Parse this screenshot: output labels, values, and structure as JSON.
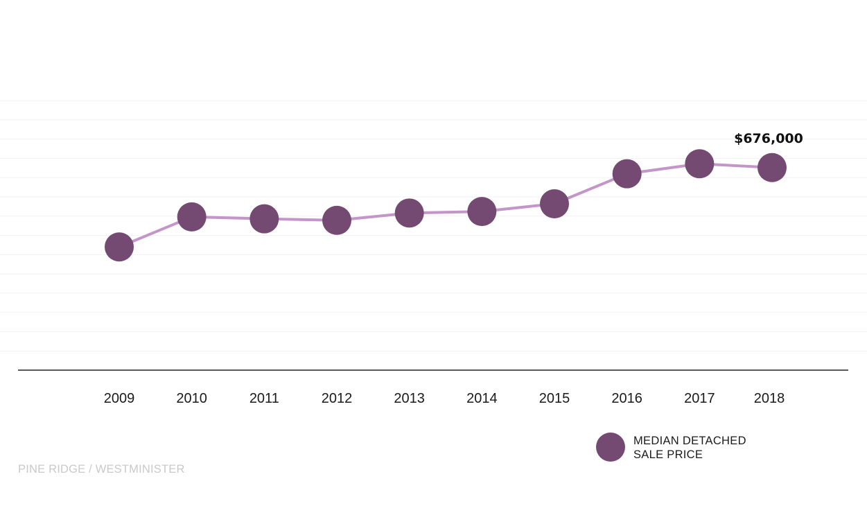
{
  "chart_data": {
    "type": "line",
    "categories": [
      "2009",
      "2010",
      "2011",
      "2012",
      "2013",
      "2014",
      "2015",
      "2016",
      "2017",
      "2018"
    ],
    "series": [
      {
        "name": "MEDIAN DETACHED SALE PRICE",
        "values": [
          470000,
          548000,
          543000,
          539000,
          558000,
          562000,
          582000,
          660000,
          686000,
          676000
        ]
      }
    ],
    "annotation": {
      "category": "2018",
      "text": "$676,000"
    },
    "ylim": [
      150000,
      1050000
    ],
    "grid": true,
    "legend_placement": "bottom-right",
    "colors": {
      "marker": "#744a72",
      "line": "#c495c9",
      "grid": "#f2f2f2",
      "axis": "#222222"
    }
  },
  "legend": {
    "line1": "MEDIAN DETACHED",
    "line2": "SALE PRICE"
  },
  "source": "PINE RIDGE / WESTMINISTER"
}
